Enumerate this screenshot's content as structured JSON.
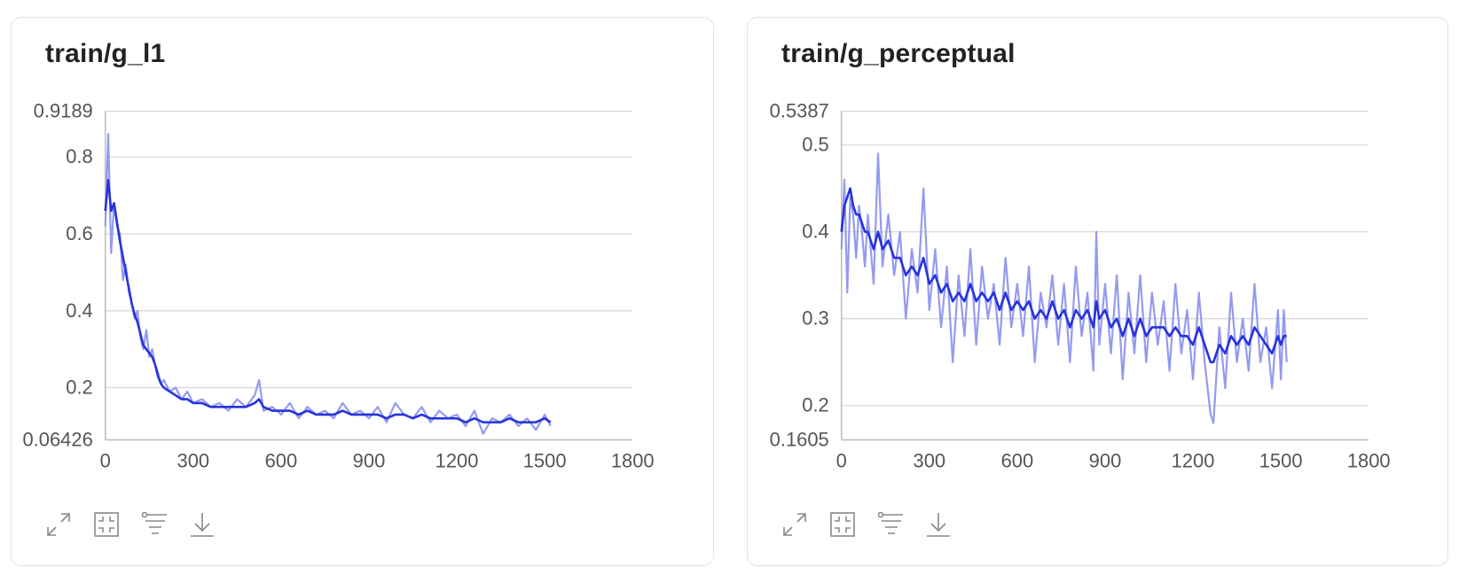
{
  "colors": {
    "raw": "#8f95ee",
    "smoothed": "#2632dd",
    "grid": "#d9d9d9",
    "axis": "#bbbbbb",
    "text": "#555555"
  },
  "toolbar_icons": [
    "expand-icon",
    "fit-icon",
    "filter-icon",
    "download-icon"
  ],
  "chart_data": [
    {
      "type": "line",
      "title": "train/g_l1",
      "xlabel": "",
      "ylabel": "",
      "xlim": [
        0,
        1800
      ],
      "ylim": [
        0.06426,
        0.9189
      ],
      "x_ticks": [
        "0",
        "300",
        "600",
        "900",
        "1200",
        "1500",
        "1800"
      ],
      "y_ticks": [
        "0.9189",
        "0.8",
        "0.6",
        "0.4",
        "0.2",
        "0.06426"
      ],
      "y_tick_values": [
        0.9189,
        0.8,
        0.6,
        0.4,
        0.2,
        0.06426
      ],
      "grid": true,
      "legend": "none",
      "series": [
        {
          "role": "raw",
          "x": [
            0,
            10,
            20,
            30,
            40,
            50,
            60,
            70,
            80,
            90,
            100,
            110,
            120,
            130,
            140,
            150,
            160,
            170,
            180,
            190,
            200,
            220,
            240,
            260,
            280,
            300,
            330,
            360,
            390,
            420,
            450,
            480,
            510,
            525,
            540,
            570,
            600,
            630,
            660,
            690,
            720,
            750,
            780,
            810,
            840,
            870,
            900,
            930,
            960,
            990,
            1020,
            1050,
            1080,
            1110,
            1140,
            1170,
            1200,
            1230,
            1260,
            1290,
            1320,
            1350,
            1380,
            1410,
            1440,
            1470,
            1500,
            1520
          ],
          "y": [
            0.62,
            0.86,
            0.55,
            0.68,
            0.62,
            0.6,
            0.48,
            0.52,
            0.45,
            0.42,
            0.38,
            0.4,
            0.33,
            0.3,
            0.35,
            0.28,
            0.3,
            0.26,
            0.24,
            0.21,
            0.22,
            0.19,
            0.2,
            0.17,
            0.19,
            0.16,
            0.17,
            0.15,
            0.16,
            0.14,
            0.17,
            0.15,
            0.18,
            0.22,
            0.14,
            0.15,
            0.13,
            0.16,
            0.12,
            0.15,
            0.13,
            0.14,
            0.12,
            0.16,
            0.13,
            0.14,
            0.12,
            0.15,
            0.11,
            0.16,
            0.13,
            0.12,
            0.15,
            0.11,
            0.14,
            0.12,
            0.13,
            0.1,
            0.14,
            0.08,
            0.12,
            0.11,
            0.13,
            0.1,
            0.12,
            0.09,
            0.13,
            0.1
          ]
        },
        {
          "role": "smoothed",
          "x": [
            0,
            10,
            20,
            30,
            40,
            50,
            60,
            70,
            80,
            90,
            100,
            110,
            120,
            130,
            140,
            150,
            160,
            170,
            180,
            190,
            200,
            220,
            240,
            260,
            280,
            300,
            330,
            360,
            390,
            420,
            450,
            480,
            510,
            525,
            540,
            570,
            600,
            630,
            660,
            690,
            720,
            750,
            780,
            810,
            840,
            870,
            900,
            930,
            960,
            990,
            1020,
            1050,
            1080,
            1110,
            1140,
            1170,
            1200,
            1230,
            1260,
            1290,
            1320,
            1350,
            1380,
            1410,
            1440,
            1470,
            1500,
            1520
          ],
          "y": [
            0.66,
            0.74,
            0.66,
            0.68,
            0.63,
            0.58,
            0.54,
            0.5,
            0.46,
            0.42,
            0.39,
            0.37,
            0.34,
            0.31,
            0.3,
            0.29,
            0.28,
            0.26,
            0.23,
            0.21,
            0.2,
            0.19,
            0.18,
            0.17,
            0.17,
            0.16,
            0.16,
            0.15,
            0.15,
            0.15,
            0.15,
            0.15,
            0.16,
            0.17,
            0.15,
            0.14,
            0.14,
            0.14,
            0.13,
            0.14,
            0.13,
            0.13,
            0.13,
            0.14,
            0.13,
            0.13,
            0.13,
            0.13,
            0.12,
            0.13,
            0.13,
            0.12,
            0.13,
            0.12,
            0.12,
            0.12,
            0.12,
            0.11,
            0.12,
            0.11,
            0.11,
            0.11,
            0.12,
            0.11,
            0.11,
            0.11,
            0.12,
            0.11
          ]
        }
      ]
    },
    {
      "type": "line",
      "title": "train/g_perceptual",
      "xlabel": "",
      "ylabel": "",
      "xlim": [
        0,
        1800
      ],
      "ylim": [
        0.1605,
        0.5387
      ],
      "x_ticks": [
        "0",
        "300",
        "600",
        "900",
        "1200",
        "1500",
        "1800"
      ],
      "y_ticks": [
        "0.5387",
        "0.5",
        "0.4",
        "0.3",
        "0.2",
        "0.1605"
      ],
      "y_tick_values": [
        0.5387,
        0.5,
        0.4,
        0.3,
        0.2,
        0.1605
      ],
      "grid": true,
      "legend": "none",
      "series": [
        {
          "role": "raw",
          "x": [
            0,
            10,
            20,
            30,
            40,
            50,
            60,
            70,
            80,
            90,
            100,
            110,
            125,
            140,
            160,
            180,
            200,
            220,
            240,
            260,
            280,
            300,
            320,
            340,
            360,
            380,
            400,
            420,
            440,
            460,
            480,
            500,
            520,
            540,
            560,
            580,
            600,
            620,
            640,
            660,
            680,
            700,
            720,
            740,
            760,
            780,
            800,
            820,
            840,
            860,
            870,
            880,
            900,
            920,
            940,
            960,
            980,
            1000,
            1020,
            1040,
            1060,
            1080,
            1100,
            1120,
            1140,
            1160,
            1180,
            1200,
            1220,
            1240,
            1260,
            1270,
            1290,
            1310,
            1330,
            1350,
            1370,
            1390,
            1410,
            1430,
            1450,
            1470,
            1490,
            1500,
            1510,
            1520
          ],
          "y": [
            0.38,
            0.46,
            0.33,
            0.44,
            0.42,
            0.37,
            0.43,
            0.4,
            0.36,
            0.42,
            0.38,
            0.34,
            0.49,
            0.36,
            0.42,
            0.35,
            0.4,
            0.3,
            0.38,
            0.33,
            0.45,
            0.31,
            0.38,
            0.29,
            0.36,
            0.25,
            0.35,
            0.28,
            0.38,
            0.27,
            0.36,
            0.3,
            0.34,
            0.27,
            0.37,
            0.29,
            0.34,
            0.28,
            0.36,
            0.25,
            0.33,
            0.29,
            0.35,
            0.27,
            0.34,
            0.25,
            0.36,
            0.28,
            0.33,
            0.24,
            0.4,
            0.27,
            0.34,
            0.26,
            0.35,
            0.23,
            0.33,
            0.26,
            0.35,
            0.25,
            0.33,
            0.27,
            0.32,
            0.24,
            0.34,
            0.26,
            0.31,
            0.23,
            0.33,
            0.25,
            0.19,
            0.18,
            0.29,
            0.22,
            0.33,
            0.25,
            0.3,
            0.24,
            0.34,
            0.25,
            0.29,
            0.22,
            0.31,
            0.23,
            0.31,
            0.25
          ]
        },
        {
          "role": "smoothed",
          "x": [
            0,
            10,
            20,
            30,
            40,
            50,
            60,
            70,
            80,
            90,
            100,
            110,
            125,
            140,
            160,
            180,
            200,
            220,
            240,
            260,
            280,
            300,
            320,
            340,
            360,
            380,
            400,
            420,
            440,
            460,
            480,
            500,
            520,
            540,
            560,
            580,
            600,
            620,
            640,
            660,
            680,
            700,
            720,
            740,
            760,
            780,
            800,
            820,
            840,
            860,
            870,
            880,
            900,
            920,
            940,
            960,
            980,
            1000,
            1020,
            1040,
            1060,
            1080,
            1100,
            1120,
            1140,
            1160,
            1180,
            1200,
            1220,
            1240,
            1260,
            1270,
            1290,
            1310,
            1330,
            1350,
            1370,
            1390,
            1410,
            1430,
            1450,
            1470,
            1490,
            1500,
            1510,
            1520
          ],
          "y": [
            0.4,
            0.43,
            0.44,
            0.45,
            0.43,
            0.42,
            0.42,
            0.41,
            0.4,
            0.4,
            0.39,
            0.38,
            0.4,
            0.38,
            0.39,
            0.37,
            0.37,
            0.35,
            0.36,
            0.35,
            0.37,
            0.34,
            0.35,
            0.33,
            0.34,
            0.32,
            0.33,
            0.32,
            0.34,
            0.32,
            0.33,
            0.32,
            0.33,
            0.31,
            0.33,
            0.31,
            0.32,
            0.31,
            0.32,
            0.3,
            0.31,
            0.3,
            0.32,
            0.3,
            0.31,
            0.29,
            0.31,
            0.3,
            0.31,
            0.29,
            0.32,
            0.3,
            0.31,
            0.29,
            0.3,
            0.28,
            0.3,
            0.28,
            0.3,
            0.28,
            0.29,
            0.29,
            0.29,
            0.28,
            0.29,
            0.28,
            0.28,
            0.27,
            0.29,
            0.27,
            0.25,
            0.25,
            0.27,
            0.26,
            0.28,
            0.27,
            0.28,
            0.27,
            0.29,
            0.28,
            0.27,
            0.26,
            0.28,
            0.27,
            0.28,
            0.28
          ]
        }
      ]
    }
  ]
}
